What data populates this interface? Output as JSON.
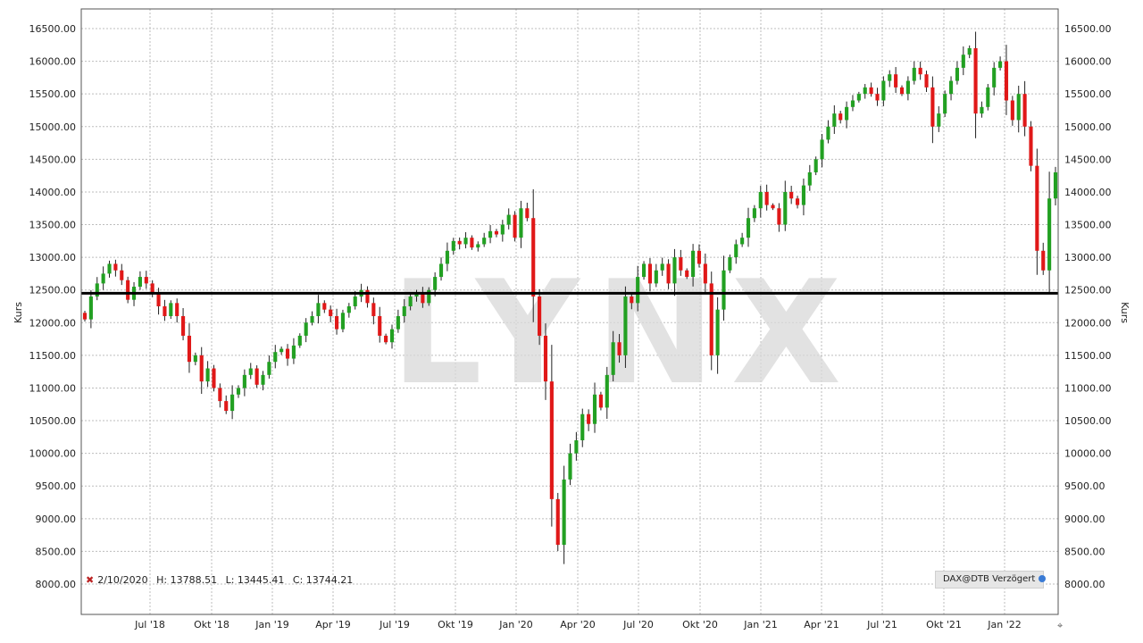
{
  "chart_data": {
    "type": "candlestick",
    "ylabel": "Kurs",
    "ylim": [
      7800,
      16800
    ],
    "y_ticks": [
      "16500.00",
      "16000.00",
      "15500.00",
      "15000.00",
      "14500.00",
      "14000.00",
      "13500.00",
      "13000.00",
      "12500.00",
      "12000.00",
      "11500.00",
      "11000.00",
      "10500.00",
      "10000.00",
      "9500.00",
      "9000.00",
      "8500.00",
      "8000.00"
    ],
    "x_ticks": [
      "Jul '18",
      "Okt '18",
      "Jan '19",
      "Apr '19",
      "Jul '19",
      "Okt '19",
      "Jan '20",
      "Apr '20",
      "Jul '20",
      "Okt '20",
      "Jan '21",
      "Apr '21",
      "Jul '21",
      "Okt '21",
      "Jan '22"
    ],
    "reference_line": 12450,
    "watermark": "LYNX",
    "colors": {
      "up": "#22a022",
      "down": "#e01818",
      "grid": "#bdbdbd",
      "line": "#000000"
    },
    "close_series": [
      12050,
      12400,
      12600,
      12750,
      12900,
      12800,
      12650,
      12350,
      12550,
      12700,
      12600,
      12450,
      12250,
      12100,
      12300,
      12100,
      11800,
      11400,
      11500,
      11100,
      11300,
      11000,
      10800,
      10650,
      10900,
      11000,
      11200,
      11300,
      11050,
      11200,
      11400,
      11550,
      11600,
      11450,
      11650,
      11800,
      12000,
      12100,
      12300,
      12200,
      12100,
      11900,
      12150,
      12250,
      12400,
      12500,
      12300,
      12100,
      11800,
      11700,
      11900,
      12100,
      12250,
      12400,
      12450,
      12300,
      12500,
      12700,
      12900,
      13100,
      13250,
      13200,
      13300,
      13150,
      13200,
      13300,
      13400,
      13350,
      13500,
      13650,
      13300,
      13750,
      13600,
      12400,
      11800,
      11100,
      9300,
      8600,
      9600,
      10000,
      10200,
      10600,
      10450,
      10900,
      10700,
      11200,
      11700,
      11500,
      12400,
      12300,
      12700,
      12900,
      12600,
      12800,
      12900,
      12600,
      13000,
      12800,
      12700,
      13100,
      12900,
      12600,
      11500,
      12200,
      12800,
      13000,
      13200,
      13300,
      13600,
      13750,
      14000,
      13800,
      13750,
      13500,
      14000,
      13900,
      13800,
      14100,
      14300,
      14500,
      14800,
      15000,
      15200,
      15100,
      15300,
      15400,
      15500,
      15600,
      15500,
      15400,
      15700,
      15800,
      15600,
      15500,
      15700,
      15900,
      15800,
      15600,
      15000,
      15200,
      15500,
      15700,
      15900,
      16100,
      16200,
      15200,
      15300,
      15600,
      15900,
      16000,
      15400,
      15100,
      15500,
      15000,
      14400,
      13100,
      12800,
      13900,
      14300
    ],
    "series": [
      {
        "name": "DAX@DTB Verzögert",
        "values": []
      }
    ],
    "last_bar": {
      "date": "2/10/2020",
      "high": "H: 13788.51",
      "low": "L: 13445.41",
      "close": "C: 13744.21"
    }
  },
  "info_bar": {
    "marker": "✖",
    "date": "2/10/2020",
    "high": "H: 13788.51",
    "low": "L: 13445.41",
    "close": "C: 13744.21"
  },
  "source_badge": "DAX@DTB Verzögert",
  "corner_glyph": "⌖"
}
